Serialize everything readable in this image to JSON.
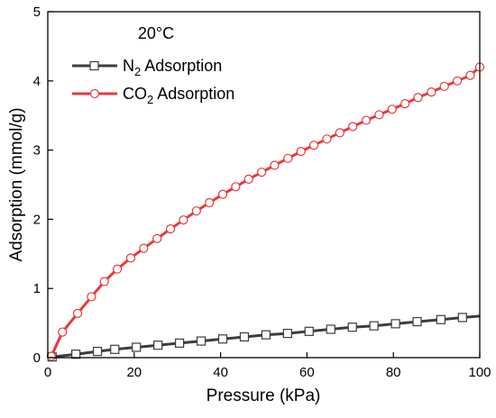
{
  "chart_data": {
    "type": "line",
    "title": "",
    "annotation": "20°C",
    "xlabel": "Pressure (kPa)",
    "ylabel": "Adsorption (mmol/g)",
    "xlim": [
      0,
      100
    ],
    "ylim": [
      0,
      5
    ],
    "xticks": [
      "0",
      "20",
      "40",
      "60",
      "80",
      "100"
    ],
    "yticks": [
      "0",
      "1",
      "2",
      "3",
      "4",
      "5"
    ],
    "grid": false,
    "legend": "top-left",
    "series": [
      {
        "name": "N2 Adsorption",
        "label_main": "N",
        "label_sub": "2",
        "label_rest": " Adsorption",
        "color": "#3d3d3d",
        "marker": "square",
        "x": [
          1,
          6.5,
          11.5,
          15.5,
          20.5,
          25.5,
          30.5,
          35.5,
          40.5,
          45.5,
          50.5,
          55.5,
          60.5,
          65.5,
          70.5,
          75.5,
          80.5,
          85.5,
          91,
          96
        ],
        "y": [
          0.01,
          0.05,
          0.09,
          0.12,
          0.15,
          0.18,
          0.21,
          0.24,
          0.27,
          0.3,
          0.33,
          0.35,
          0.38,
          0.41,
          0.44,
          0.46,
          0.49,
          0.52,
          0.55,
          0.58
        ]
      },
      {
        "name": "CO2 Adsorption",
        "label_main": "CO",
        "label_sub": "2",
        "label_rest": " Adsorption",
        "color": "#e8393d",
        "marker": "circle",
        "x": [
          0.8,
          3.4,
          6.9,
          10.1,
          13.1,
          16.1,
          19.2,
          22.2,
          25.3,
          28.4,
          31.4,
          34.4,
          37.4,
          40.5,
          43.5,
          46.5,
          49.5,
          52.5,
          55.6,
          58.6,
          61.6,
          64.6,
          67.6,
          70.6,
          73.7,
          76.7,
          79.7,
          82.7,
          85.7,
          88.8,
          91.8,
          94.8,
          97.8,
          100
        ],
        "y": [
          0.02,
          0.37,
          0.64,
          0.88,
          1.1,
          1.28,
          1.44,
          1.58,
          1.72,
          1.86,
          1.99,
          2.12,
          2.24,
          2.36,
          2.47,
          2.58,
          2.68,
          2.78,
          2.88,
          2.98,
          3.07,
          3.16,
          3.25,
          3.34,
          3.43,
          3.51,
          3.59,
          3.67,
          3.76,
          3.84,
          3.92,
          4.0,
          4.08,
          4.2
        ]
      }
    ]
  }
}
